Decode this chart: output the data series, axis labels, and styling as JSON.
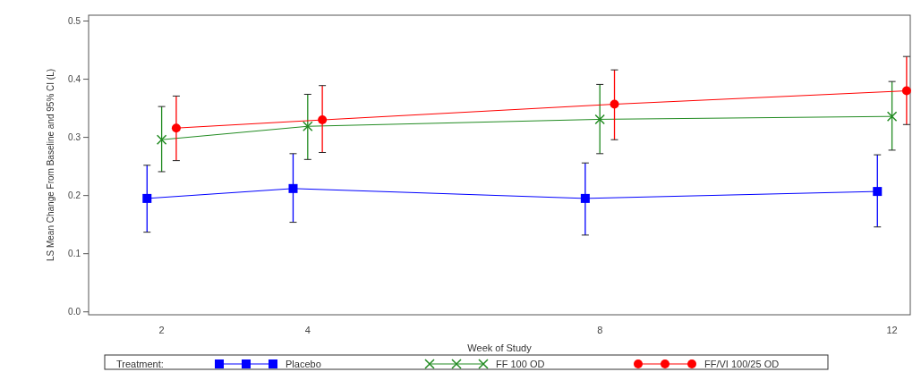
{
  "chart_data": {
    "type": "line",
    "xlabel": "Week of Study",
    "ylabel": "LS Mean Change From Baseline and 95% CI (L)",
    "legend_title": "Treatment:",
    "xlim": [
      1,
      12.25
    ],
    "xticks": [
      2,
      4,
      8,
      12
    ],
    "ylim": [
      -0.005,
      0.51
    ],
    "yticks": [
      {
        "value": 0,
        "label": "0.0"
      },
      0.1,
      0.2,
      0.3,
      0.4,
      0.5
    ],
    "grid": false,
    "legend": "bottom",
    "line_style": "solid",
    "series": [
      {
        "name": "Placebo",
        "color": "#0000ff",
        "marker": "square",
        "x": [
          1.8,
          3.8,
          7.8,
          11.8
        ],
        "values": [
          0.195,
          0.212,
          0.195,
          0.207
        ],
        "errors": [
          [
            0.137,
            0.252
          ],
          [
            0.154,
            0.272
          ],
          [
            0.132,
            0.256
          ],
          [
            0.146,
            0.27
          ]
        ]
      },
      {
        "name": "FF 100 OD",
        "color": "#228b22",
        "marker": "cross",
        "x": [
          2,
          4,
          8,
          12
        ],
        "values": [
          0.296,
          0.319,
          0.331,
          0.336
        ],
        "errors": [
          [
            0.241,
            0.353
          ],
          [
            0.262,
            0.374
          ],
          [
            0.272,
            0.391
          ],
          [
            0.278,
            0.396
          ]
        ]
      },
      {
        "name": "FF/VI 100/25 OD",
        "color": "#ff0000",
        "marker": "circle",
        "x": [
          2.2,
          4.2,
          8.2,
          12.2
        ],
        "values": [
          0.316,
          0.33,
          0.357,
          0.38
        ],
        "errors": [
          [
            0.26,
            0.371
          ],
          [
            0.274,
            0.389
          ],
          [
            0.296,
            0.416
          ],
          [
            0.322,
            0.439
          ]
        ]
      }
    ]
  }
}
